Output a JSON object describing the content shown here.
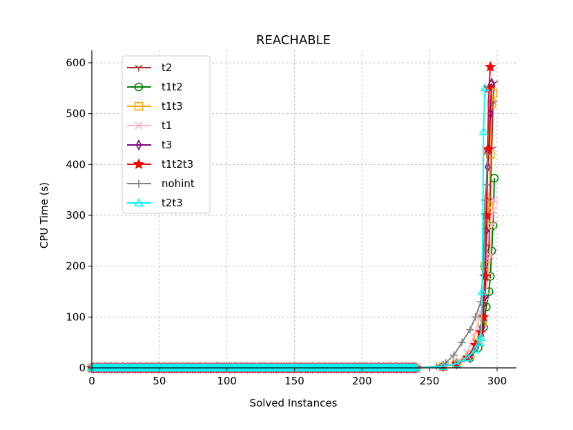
{
  "chart_data": {
    "type": "line",
    "title": "REACHABLE",
    "xlabel": "Solved Instances",
    "ylabel": "CPU Time (s)",
    "xlim": [
      -2,
      313
    ],
    "ylim": [
      -10,
      622
    ],
    "xticks": [
      0,
      50,
      100,
      150,
      200,
      250,
      300
    ],
    "yticks": [
      0,
      100,
      200,
      300,
      400,
      500,
      600
    ],
    "grid": true,
    "legend_position": "top-left",
    "series": [
      {
        "name": "t2",
        "color": "#a52a2a",
        "marker": "tri_down",
        "x": [
          0,
          240,
          260,
          270,
          280,
          285,
          288,
          290,
          292,
          294,
          295,
          296,
          297,
          298
        ],
        "y": [
          0,
          0,
          3,
          10,
          25,
          50,
          80,
          120,
          180,
          240,
          330,
          430,
          520,
          560
        ]
      },
      {
        "name": "t1t2",
        "color": "#008000",
        "marker": "circle",
        "x": [
          0,
          240,
          260,
          270,
          280,
          286,
          290,
          292,
          294,
          295,
          296,
          297,
          298
        ],
        "y": [
          0,
          0,
          3,
          8,
          20,
          40,
          80,
          120,
          150,
          180,
          230,
          280,
          373
        ]
      },
      {
        "name": "t1t3",
        "color": "#ffa500",
        "marker": "square",
        "x": [
          0,
          240,
          260,
          270,
          280,
          286,
          289,
          291,
          293,
          294,
          295,
          296,
          297
        ],
        "y": [
          0,
          0,
          3,
          8,
          25,
          60,
          90,
          200,
          280,
          320,
          420,
          520,
          540
        ]
      },
      {
        "name": "t1",
        "color": "#ffb6c1",
        "marker": "x",
        "x": [
          0,
          240,
          260,
          270,
          278,
          284,
          288,
          291,
          293,
          295,
          296,
          297,
          298
        ],
        "y": [
          0,
          0,
          3,
          10,
          30,
          70,
          110,
          140,
          180,
          220,
          280,
          310,
          330
        ]
      },
      {
        "name": "t3",
        "color": "#800080",
        "marker": "thin_diamond",
        "x": [
          0,
          240,
          260,
          270,
          280,
          285,
          289,
          290,
          291,
          292,
          293,
          294,
          295,
          296
        ],
        "y": [
          0,
          0,
          3,
          8,
          20,
          45,
          80,
          125,
          140,
          270,
          395,
          430,
          500,
          560
        ]
      },
      {
        "name": "t1t2t3",
        "color": "#ff0000",
        "marker": "star",
        "x": [
          0,
          240,
          260,
          270,
          278,
          284,
          288,
          290,
          291,
          292,
          293,
          294,
          295
        ],
        "y": [
          0,
          0,
          3,
          8,
          20,
          45,
          70,
          100,
          180,
          300,
          430,
          550,
          592
        ]
      },
      {
        "name": "nohint",
        "color": "#808080",
        "marker": "plus",
        "x": [
          0,
          240,
          255,
          262,
          268,
          274,
          280,
          284,
          288,
          290,
          291,
          292,
          293
        ],
        "y": [
          0,
          0,
          3,
          10,
          25,
          50,
          75,
          100,
          130,
          200,
          330,
          360,
          420
        ]
      },
      {
        "name": "t2t3",
        "color": "#00ffff",
        "marker": "triangle_up",
        "x": [
          0,
          240,
          260,
          270,
          278,
          284,
          287,
          288,
          289,
          290,
          291
        ],
        "y": [
          0,
          0,
          3,
          8,
          20,
          35,
          50,
          60,
          150,
          465,
          551
        ]
      }
    ]
  }
}
